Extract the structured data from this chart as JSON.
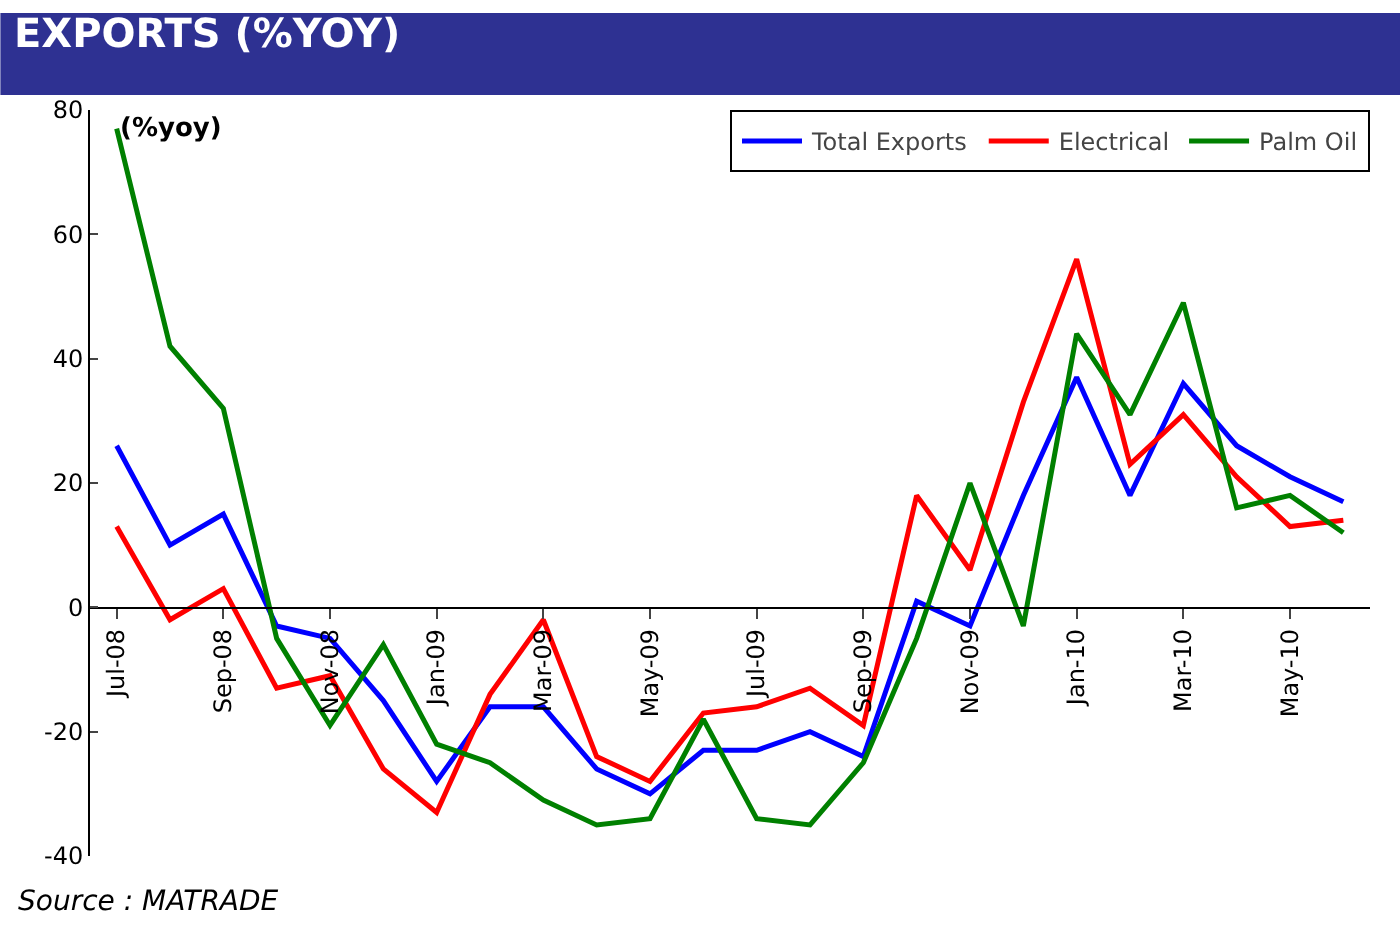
{
  "chart_data": {
    "type": "line",
    "title": "EXPORTS (%YOY)",
    "ylabel": "(%yoy)",
    "categories": [
      "Jul-08",
      null,
      "Sep-08",
      null,
      "Nov-08",
      null,
      "Jan-09",
      null,
      "Mar-09",
      null,
      "May-09",
      null,
      "Jul-09",
      null,
      "Sep-09",
      null,
      "Nov-09",
      null,
      "Jan-10",
      null,
      "Mar-10",
      null,
      "May-10",
      null
    ],
    "series": [
      {
        "name": "Total Exports",
        "color": "#0000ff",
        "values": [
          26,
          10,
          15,
          -3,
          -5,
          -15,
          -28,
          -16,
          -16,
          -26,
          -30,
          -23,
          -23,
          -20,
          -24,
          1,
          -3,
          18,
          37,
          18,
          36,
          26,
          21,
          17
        ]
      },
      {
        "name": "Electrical",
        "color": "#ff0000",
        "values": [
          13,
          -2,
          3,
          -13,
          -11,
          -26,
          -33,
          -14,
          -2,
          -24,
          -28,
          -17,
          -16,
          -13,
          -19,
          18,
          6,
          33,
          56,
          23,
          31,
          21,
          13,
          14
        ]
      },
      {
        "name": "Palm Oil",
        "color": "#008000",
        "values": [
          77,
          42,
          32,
          -5,
          -19,
          -6,
          -22,
          -25,
          -31,
          -35,
          -34,
          -18,
          -34,
          -35,
          -25,
          -5,
          20,
          -3,
          44,
          31,
          49,
          16,
          18,
          12
        ]
      }
    ],
    "ylim": [
      -40,
      80
    ],
    "yticks": [
      -40,
      -20,
      0,
      20,
      40,
      60,
      80
    ],
    "grid": false,
    "legend": "top",
    "marker": "none",
    "line_style": "solid",
    "annotations": [
      "Source : MATRADE"
    ]
  }
}
